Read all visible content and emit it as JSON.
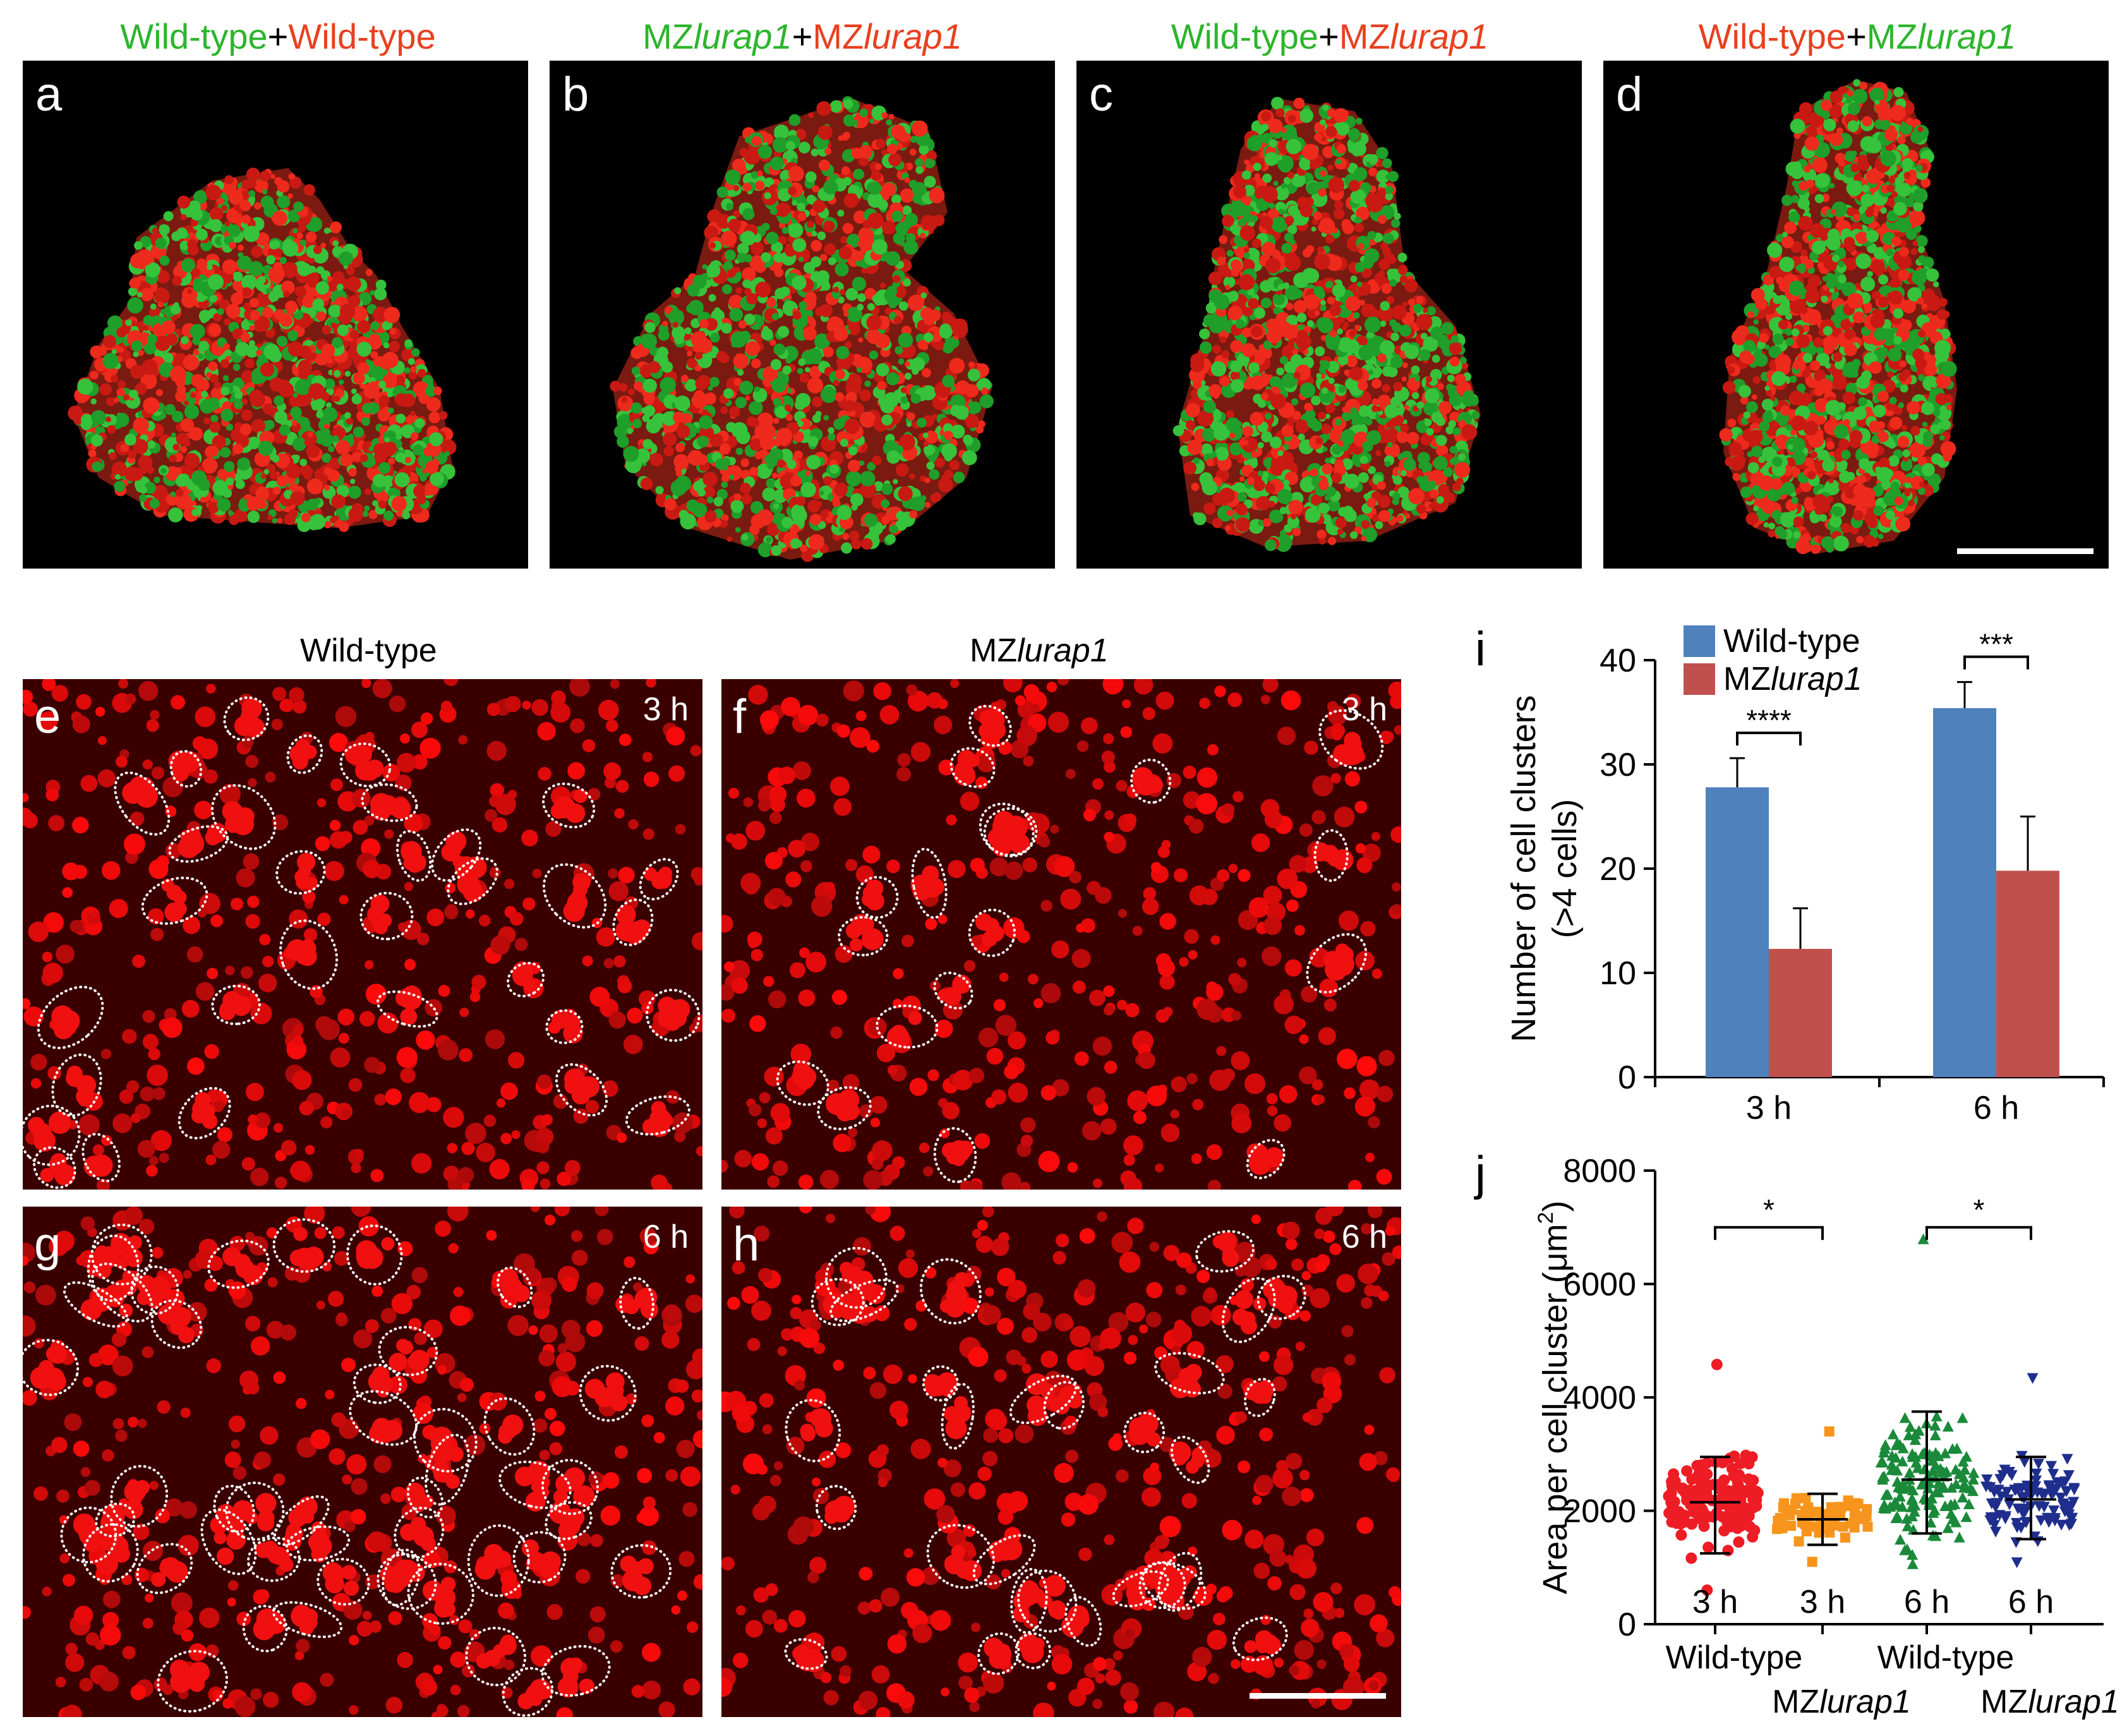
{
  "top_panels": [
    {
      "letter": "a",
      "title_left": "Wild-type",
      "plus": "+",
      "title_right": "Wild-type",
      "left_italic": "",
      "right_italic": ""
    },
    {
      "letter": "b",
      "title_left": "MZ",
      "left_italic": "lurap1",
      "plus": "+",
      "title_right": "MZ",
      "right_italic": "lurap1"
    },
    {
      "letter": "c",
      "title_left": "Wild-type",
      "left_italic": "",
      "plus": "+",
      "title_right": "MZ",
      "right_italic": "lurap1"
    },
    {
      "letter": "d",
      "title_left": "Wild-type",
      "left_italic": "",
      "plus": "+",
      "title_right": "MZ",
      "right_italic": "lurap1"
    }
  ],
  "middle_columns": {
    "left_title": "Wild-type",
    "right_title_prefix": "MZ",
    "right_title_italic": "lurap1"
  },
  "micro_panels": [
    {
      "letter": "e",
      "time": "3 h"
    },
    {
      "letter": "f",
      "time": "3 h"
    },
    {
      "letter": "g",
      "time": "6 h"
    },
    {
      "letter": "h",
      "time": "6 h"
    }
  ],
  "colors": {
    "green": "#2cb52c",
    "red": "#e8401f",
    "bar_wildtype": "#4f81bd",
    "bar_mz": "#c0504d",
    "dot_wt3": "#ee1c24",
    "dot_mz3": "#f7941d",
    "dot_wt6": "#1a8a3a",
    "dot_mz6": "#1f2e8c"
  },
  "chart_i": {
    "letter": "i",
    "legend": [
      {
        "label": "Wild-type"
      },
      {
        "label_prefix": "MZ",
        "label_italic": "lurap1"
      }
    ],
    "ylabel_line1": "Number of cell clusters",
    "ylabel_line2": "(>4 cells)",
    "yticks": [
      "0",
      "10",
      "20",
      "30",
      "40"
    ],
    "xticks": [
      "3 h",
      "6 h"
    ],
    "sig": [
      "****",
      "***"
    ]
  },
  "chart_j": {
    "letter": "j",
    "ylabel": "Area per cell cluster (μm²)",
    "ylabel_main": "Area per cell cluster (μm",
    "ylabel_sup": "2",
    "ylabel_end": ")",
    "yticks": [
      "0",
      "2000",
      "4000",
      "6000",
      "8000"
    ],
    "group_times": [
      "3 h",
      "3 h",
      "6 h",
      "6 h"
    ],
    "group_labels": [
      "Wild-type",
      "MZ",
      "Wild-type",
      "MZ"
    ],
    "group_italic": [
      "",
      "lurap1",
      "",
      "lurap1"
    ],
    "sig": [
      "*",
      "*"
    ]
  },
  "chart_data": [
    {
      "type": "bar",
      "categories": [
        "3 h",
        "6 h"
      ],
      "series": [
        {
          "name": "Wild-type",
          "values": [
            27.8,
            35.4
          ],
          "errors": [
            2.8,
            2.5
          ]
        },
        {
          "name": "MZlurap1",
          "values": [
            12.3,
            19.8
          ],
          "errors": [
            3.9,
            5.2
          ]
        }
      ],
      "ylabel": "Number of cell clusters (>4 cells)",
      "ylim": [
        0,
        40
      ],
      "significance": [
        "****",
        "***"
      ]
    },
    {
      "type": "scatter",
      "categories": [
        "Wild-type 3 h",
        "MZlurap1 3 h",
        "Wild-type 6 h",
        "MZlurap1 6 h"
      ],
      "series": [
        {
          "name": "Wild-type 3 h",
          "mean": 2150,
          "sd_low": 1250,
          "sd_high": 2950,
          "max": 4580,
          "min": 600
        },
        {
          "name": "MZlurap1 3 h",
          "mean": 1850,
          "sd_low": 1400,
          "sd_high": 2300,
          "max": 3400,
          "min": 1100
        },
        {
          "name": "Wild-type 6 h",
          "mean": 2550,
          "sd_low": 1600,
          "sd_high": 3750,
          "max": 6780,
          "min": 1050
        },
        {
          "name": "MZlurap1 6 h",
          "mean": 2200,
          "sd_low": 1500,
          "sd_high": 2950,
          "max": 4350,
          "min": 1100
        }
      ],
      "ylabel": "Area per cell cluster (μm²)",
      "ylim": [
        0,
        8000
      ],
      "significance": [
        "*",
        "*"
      ]
    }
  ]
}
